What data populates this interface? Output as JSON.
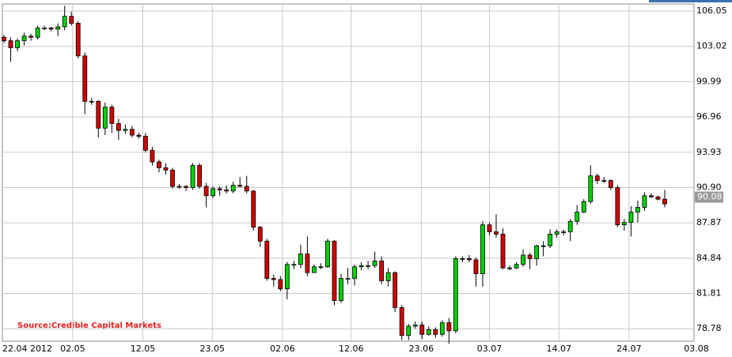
{
  "chart_data": {
    "type": "candlestick",
    "source": "Source:Credible Capital Markets",
    "open": [
      103.8,
      103.5,
      102.9,
      103.5,
      103.9,
      103.8,
      104.6,
      104.6,
      104.5,
      104.7,
      105.6,
      105.0,
      102.2,
      98.3,
      98.3,
      96.0,
      97.8,
      96.4,
      95.8,
      95.9,
      95.4,
      95.3,
      94.1,
      93.1,
      92.6,
      92.4,
      91.0,
      91.0,
      90.9,
      92.8,
      91.0,
      90.2,
      90.8,
      90.7,
      90.6,
      91.1,
      91.0,
      90.6,
      87.5,
      86.3,
      83.1,
      83.0,
      82.2,
      84.3,
      84.3,
      85.2,
      83.6,
      84.1,
      84.1,
      86.3,
      81.2,
      83.1,
      83.1,
      84.1,
      84.2,
      84.2,
      84.6,
      82.9,
      83.6,
      80.6,
      78.2,
      79.0,
      79.1,
      78.3,
      78.7,
      78.3,
      79.3,
      78.6,
      84.8,
      84.8,
      84.7,
      83.5,
      87.7,
      87.1,
      86.9,
      84.0,
      84.0,
      84.3,
      85.1,
      84.8,
      85.9,
      85.9,
      86.9,
      87.1,
      87.1,
      88.0,
      88.8,
      89.7,
      91.9,
      91.5,
      91.5,
      90.9,
      87.7,
      87.9,
      88.8,
      89.2,
      90.2,
      90.1,
      89.9
    ],
    "high": [
      104.0,
      103.8,
      103.7,
      104.2,
      104.1,
      104.8,
      104.8,
      104.7,
      105.0,
      106.5,
      106.0,
      105.2,
      102.5,
      98.6,
      98.4,
      98.2,
      98.0,
      96.8,
      96.3,
      96.2,
      95.6,
      95.6,
      94.4,
      93.3,
      93.0,
      92.6,
      91.2,
      91.1,
      93.0,
      93.0,
      91.3,
      91.0,
      91.0,
      91.1,
      91.4,
      91.8,
      91.9,
      90.7,
      87.6,
      86.5,
      83.4,
      83.3,
      84.5,
      84.6,
      86.0,
      86.7,
      84.3,
      84.4,
      86.5,
      86.4,
      83.5,
      84.0,
      84.3,
      84.5,
      84.6,
      85.4,
      85.0,
      84.0,
      83.7,
      80.8,
      79.2,
      79.4,
      79.4,
      79.0,
      78.9,
      79.5,
      79.7,
      85.0,
      85.0,
      85.1,
      84.9,
      88.0,
      87.9,
      88.6,
      87.4,
      84.2,
      84.5,
      85.6,
      85.3,
      86.0,
      86.3,
      87.3,
      87.3,
      87.3,
      88.2,
      89.4,
      89.9,
      92.8,
      92.1,
      91.8,
      91.6,
      91.1,
      88.2,
      89.3,
      89.8,
      90.5,
      90.4,
      90.2,
      90.7
    ],
    "low": [
      103.3,
      101.7,
      102.6,
      103.1,
      103.5,
      103.6,
      104.4,
      104.3,
      103.9,
      104.4,
      104.8,
      102.0,
      97.2,
      98.0,
      95.2,
      95.4,
      95.6,
      95.0,
      95.5,
      95.2,
      95.1,
      93.9,
      92.8,
      92.2,
      92.0,
      90.8,
      90.8,
      90.6,
      90.7,
      90.8,
      89.2,
      90.0,
      90.2,
      90.4,
      90.4,
      90.9,
      90.4,
      87.2,
      85.8,
      82.9,
      82.4,
      82.0,
      81.3,
      83.9,
      84.0,
      83.3,
      83.8,
      83.9,
      84.0,
      80.8,
      81.0,
      82.6,
      82.5,
      83.8,
      83.9,
      84.0,
      82.6,
      82.4,
      80.2,
      77.8,
      77.8,
      78.8,
      77.9,
      78.2,
      78.0,
      78.1,
      77.5,
      78.4,
      84.5,
      84.5,
      82.4,
      82.4,
      86.8,
      86.6,
      83.9,
      83.8,
      83.9,
      84.1,
      83.9,
      84.2,
      85.0,
      85.7,
      86.6,
      86.8,
      86.3,
      87.7,
      88.7,
      89.5,
      91.2,
      91.3,
      90.7,
      87.5,
      87.2,
      86.7,
      87.9,
      88.9,
      90.0,
      89.8,
      89.2
    ],
    "close": [
      103.5,
      102.9,
      103.5,
      103.9,
      103.8,
      104.6,
      104.6,
      104.5,
      104.7,
      105.6,
      105.0,
      102.2,
      98.3,
      98.3,
      96.0,
      97.8,
      96.4,
      95.8,
      95.9,
      95.4,
      95.3,
      94.1,
      93.1,
      92.6,
      92.4,
      91.0,
      91.0,
      90.9,
      92.8,
      91.0,
      90.2,
      90.8,
      90.7,
      90.6,
      91.1,
      91.0,
      90.6,
      87.5,
      86.3,
      83.1,
      83.0,
      82.2,
      84.3,
      84.3,
      85.2,
      83.6,
      84.1,
      84.1,
      86.3,
      81.2,
      83.1,
      83.1,
      84.1,
      84.2,
      84.2,
      84.6,
      82.9,
      83.6,
      80.6,
      78.2,
      79.0,
      79.1,
      78.3,
      78.7,
      78.3,
      79.3,
      78.6,
      84.8,
      84.8,
      84.7,
      83.5,
      87.7,
      87.1,
      86.9,
      84.0,
      84.0,
      84.3,
      85.1,
      84.8,
      85.9,
      85.9,
      86.9,
      87.1,
      87.1,
      88.0,
      88.8,
      89.7,
      91.9,
      91.5,
      91.5,
      90.9,
      87.7,
      87.9,
      88.8,
      89.2,
      90.2,
      90.1,
      89.9,
      89.5
    ],
    "up_color": "#00d000",
    "down_color": "#d00000",
    "last_price": 90.08,
    "xlim": [
      0,
      98
    ],
    "xticks": [
      {
        "value": 0,
        "label": "22.04 2012"
      },
      {
        "value": 10.2,
        "label": "02.05"
      },
      {
        "value": 20.6,
        "label": "12.05"
      },
      {
        "value": 30.9,
        "label": "23.05"
      },
      {
        "value": 41.3,
        "label": "02.06"
      },
      {
        "value": 51.5,
        "label": "12.06"
      },
      {
        "value": 61.9,
        "label": "23.06"
      },
      {
        "value": 72,
        "label": "03.07"
      },
      {
        "value": 82.3,
        "label": "14.07"
      },
      {
        "value": 92.7,
        "label": "24.07"
      },
      {
        "value": 102.7,
        "label": "03.08"
      }
    ],
    "ylim": [
      77.71,
      106.66
    ],
    "yticks": [
      106.05,
      103.02,
      99.99,
      96.96,
      93.93,
      {
        "value": 90.9,
        "label": "90.90"
      },
      87.87,
      84.84,
      81.81,
      78.78
    ],
    "grid": true
  }
}
